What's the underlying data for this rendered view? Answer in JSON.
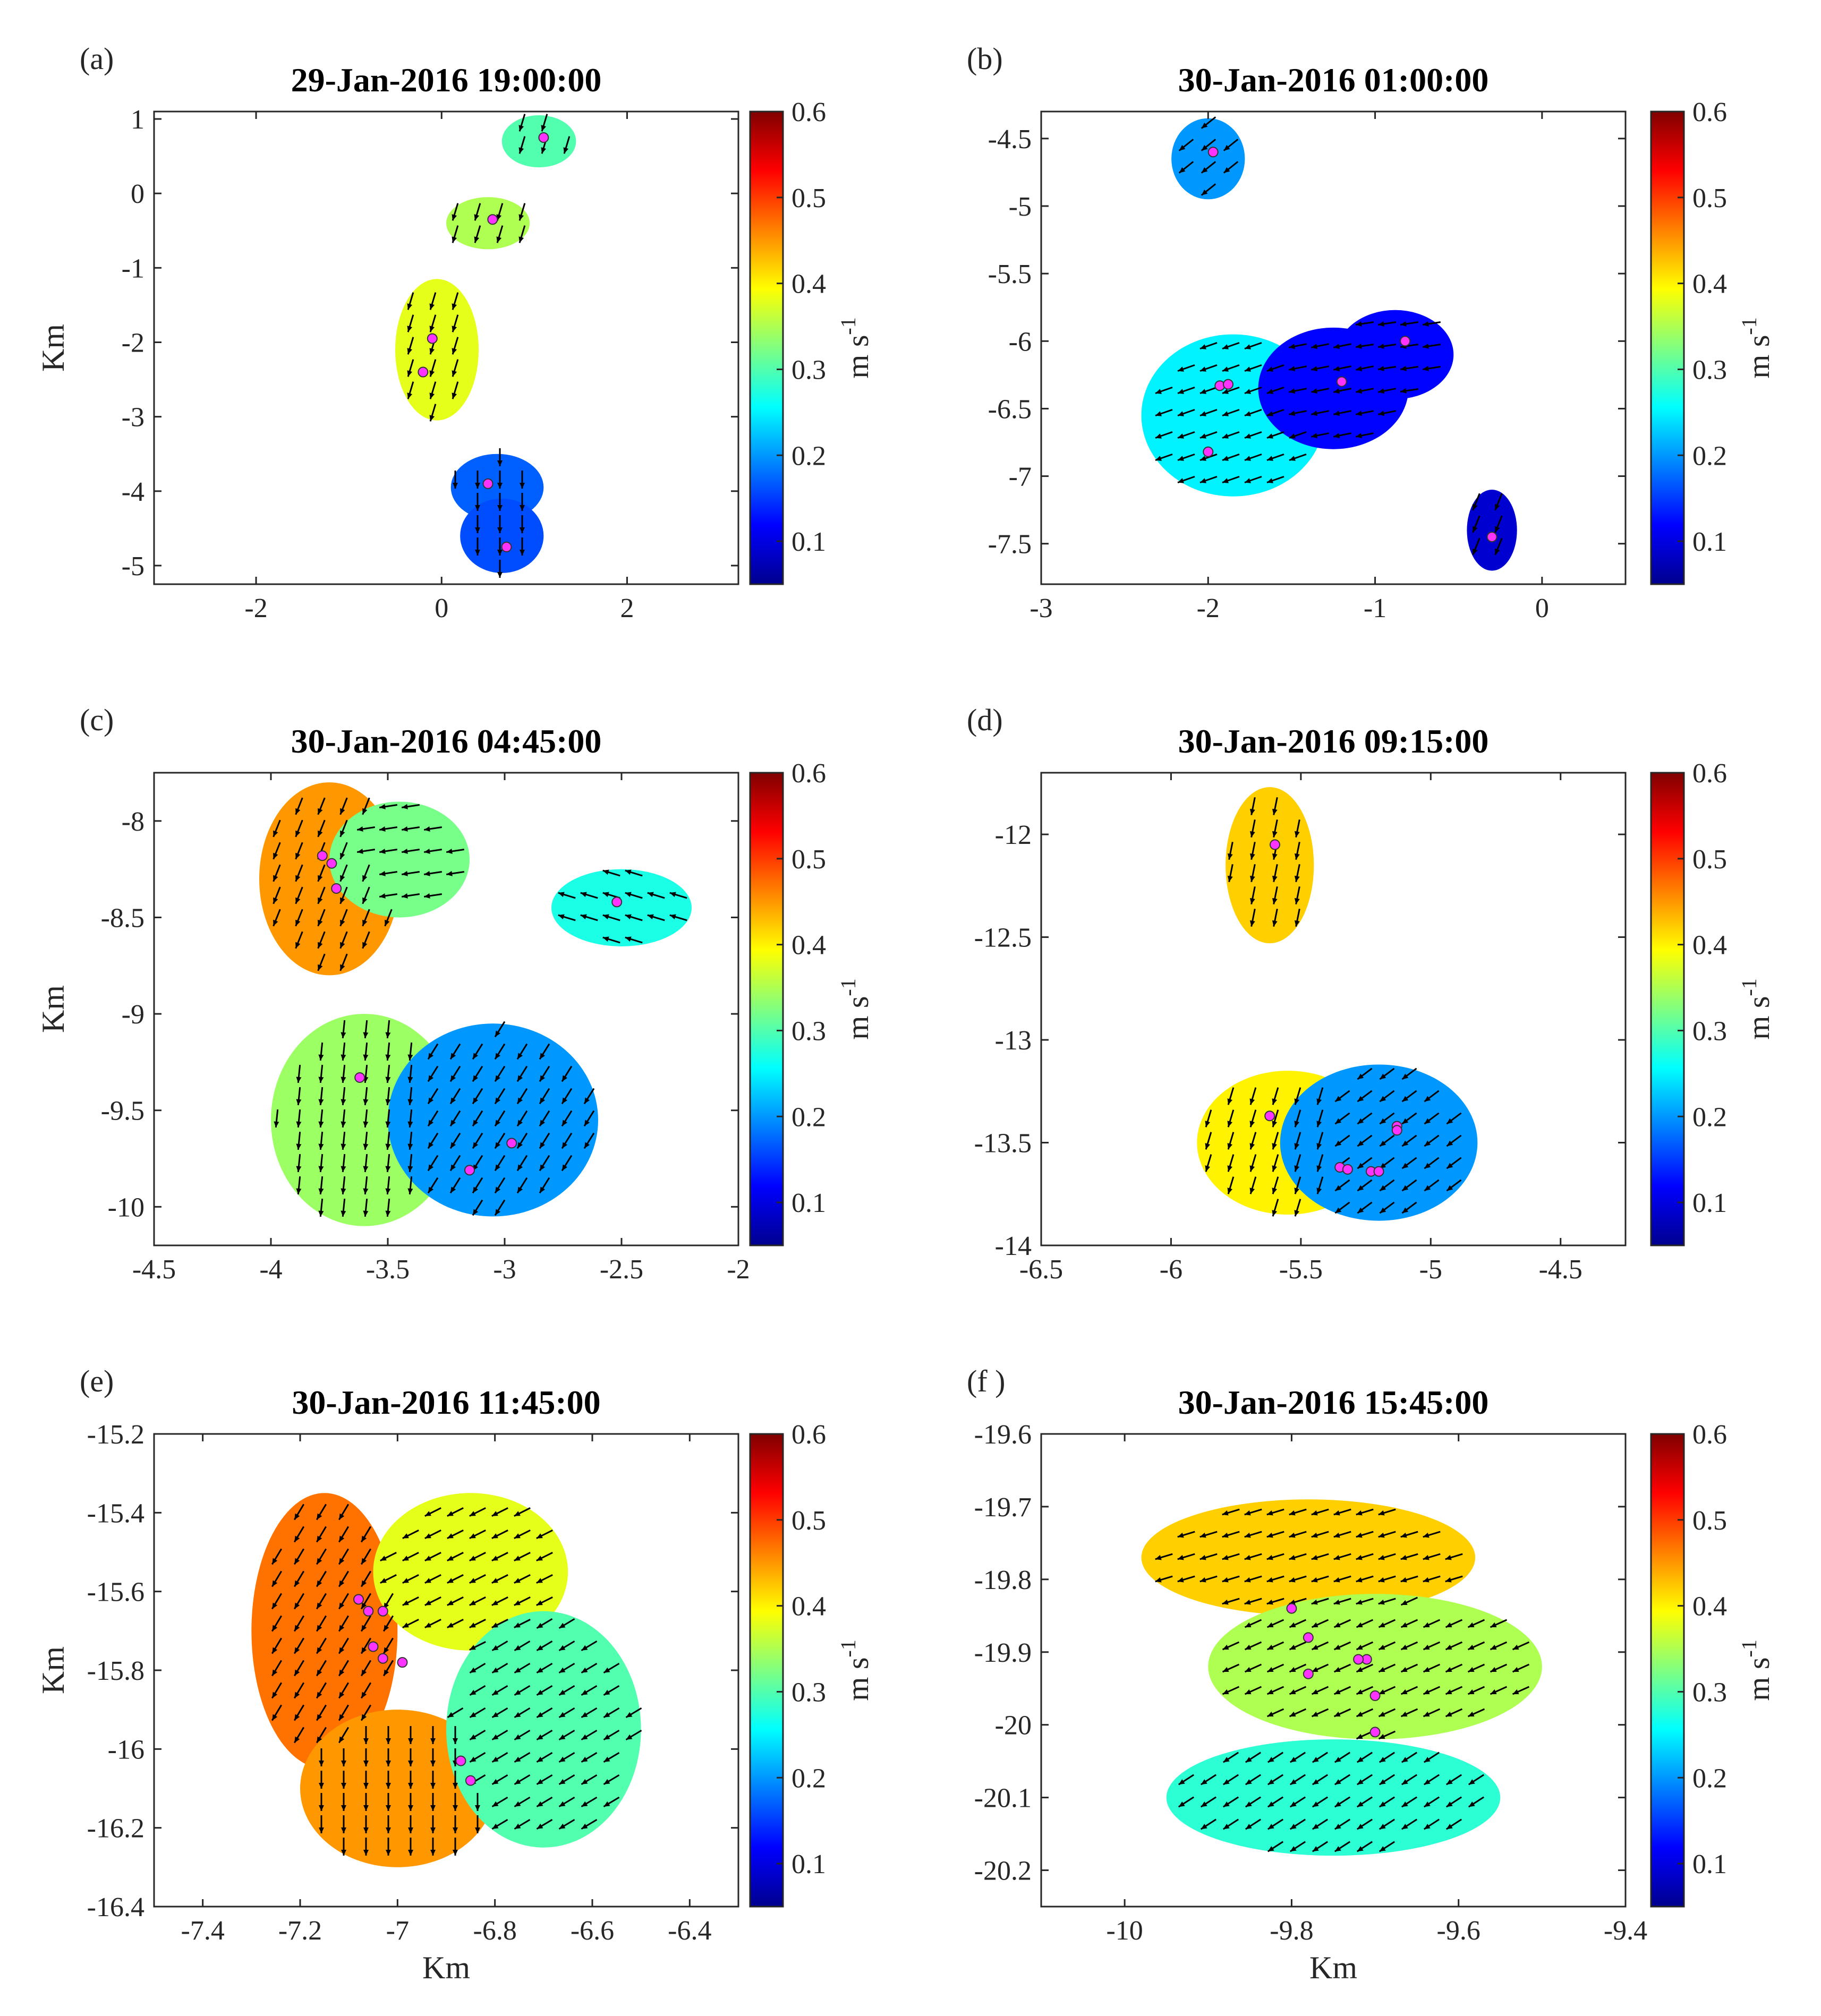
{
  "figure": {
    "colorbar_ticks": [
      "0.1",
      "0.2",
      "0.3",
      "0.4",
      "0.5",
      "0.6"
    ],
    "colorbar_label": "m s",
    "colorbar_label_superscript": "-1",
    "colormap": [
      "#00008f",
      "#0000ff",
      "#0080ff",
      "#00ffff",
      "#80ff80",
      "#ffff00",
      "#ff8000",
      "#ff0000",
      "#800000"
    ],
    "arrow_color": "#000000",
    "station_color": "#ff33ff",
    "panels": [
      {
        "label": "(a)",
        "title": "29-Jan-2016 19:00:00",
        "xticks": [
          "-2",
          "0",
          "2"
        ],
        "yticks": [
          "1",
          "0",
          "-1",
          "-2",
          "-3",
          "-4",
          "-5"
        ],
        "xlabel": "",
        "ylabel": "Km"
      },
      {
        "label": "(b)",
        "title": "30-Jan-2016 01:00:00",
        "xticks": [
          "-3",
          "-2",
          "-1",
          "0"
        ],
        "yticks": [
          "-4.5",
          "-5",
          "-5.5",
          "-6",
          "-6.5",
          "-7",
          "-7.5"
        ],
        "xlabel": "",
        "ylabel": ""
      },
      {
        "label": "(c)",
        "title": "30-Jan-2016 04:45:00",
        "xticks": [
          "-4.5",
          "-4",
          "-3.5",
          "-3",
          "-2.5",
          "-2"
        ],
        "yticks": [
          "-8",
          "-8.5",
          "-9",
          "-9.5",
          "-10"
        ],
        "xlabel": "",
        "ylabel": "Km"
      },
      {
        "label": "(d)",
        "title": "30-Jan-2016 09:15:00",
        "xticks": [
          "-6.5",
          "-6",
          "-5.5",
          "-5",
          "-4.5"
        ],
        "yticks": [
          "-12",
          "-12.5",
          "-13",
          "-13.5",
          "-14"
        ],
        "xlabel": "",
        "ylabel": ""
      },
      {
        "label": "(e)",
        "title": "30-Jan-2016 11:45:00",
        "xticks": [
          "-7.4",
          "-7.2",
          "-7",
          "-6.8",
          "-6.6",
          "-6.4"
        ],
        "yticks": [
          "-15.2",
          "-15.4",
          "-15.6",
          "-15.8",
          "-16",
          "-16.2",
          "-16.4"
        ],
        "xlabel": "Km",
        "ylabel": "Km"
      },
      {
        "label": "(f )",
        "title": "30-Jan-2016 15:45:00",
        "xticks": [
          "-10",
          "-9.8",
          "-9.6",
          "-9.4"
        ],
        "yticks": [
          "-19.6",
          "-19.7",
          "-19.8",
          "-19.9",
          "-20",
          "-20.1",
          "-20.2"
        ],
        "xlabel": "Km",
        "ylabel": ""
      }
    ]
  },
  "chart_data": [
    {
      "type": "heatmap",
      "title": "29-Jan-2016 19:00:00",
      "xlabel": "",
      "ylabel": "Km",
      "xlim": [
        -3.1,
        3.2
      ],
      "ylim": [
        -5.25,
        1.1
      ],
      "colorbar": {
        "label": "m s^-1",
        "range": [
          0.05,
          0.6
        ]
      },
      "stations": [
        [
          1.1,
          0.75
        ],
        [
          0.55,
          -0.35
        ],
        [
          -0.1,
          -1.95
        ],
        [
          -0.2,
          -2.4
        ],
        [
          0.5,
          -3.9
        ],
        [
          0.7,
          -4.75
        ]
      ],
      "regions": [
        {
          "center": [
            1.05,
            0.7
          ],
          "rx": 0.4,
          "ry": 0.35,
          "speed": 0.3,
          "flow": [
            -0.3,
            -1
          ]
        },
        {
          "center": [
            0.5,
            -0.4
          ],
          "rx": 0.45,
          "ry": 0.35,
          "speed": 0.35,
          "flow": [
            -0.3,
            -1
          ]
        },
        {
          "center": [
            -0.05,
            -2.1
          ],
          "rx": 0.45,
          "ry": 0.95,
          "speed": 0.38,
          "flow": [
            -0.3,
            -1
          ]
        },
        {
          "center": [
            0.6,
            -3.95
          ],
          "rx": 0.5,
          "ry": 0.45,
          "speed": 0.17,
          "flow": [
            0,
            -1
          ]
        },
        {
          "center": [
            0.65,
            -4.6
          ],
          "rx": 0.45,
          "ry": 0.5,
          "speed": 0.16,
          "flow": [
            0,
            -1
          ]
        }
      ]
    },
    {
      "type": "heatmap",
      "title": "30-Jan-2016 01:00:00",
      "xlabel": "",
      "ylabel": "",
      "xlim": [
        -3,
        0.5
      ],
      "ylim": [
        -7.8,
        -4.3
      ],
      "colorbar": {
        "label": "m s^-1",
        "range": [
          0.05,
          0.6
        ]
      },
      "stations": [
        [
          -1.97,
          -4.6
        ],
        [
          -1.93,
          -6.33
        ],
        [
          -1.88,
          -6.32
        ],
        [
          -2.0,
          -6.82
        ],
        [
          -1.2,
          -6.3
        ],
        [
          -0.82,
          -6.0
        ],
        [
          -0.3,
          -7.45
        ]
      ],
      "regions": [
        {
          "center": [
            -2.0,
            -4.65
          ],
          "rx": 0.22,
          "ry": 0.3,
          "speed": 0.2,
          "flow": [
            -1,
            -0.8
          ]
        },
        {
          "center": [
            -1.85,
            -6.55
          ],
          "rx": 0.55,
          "ry": 0.6,
          "speed": 0.25,
          "flow": [
            -1,
            -0.35
          ]
        },
        {
          "center": [
            -1.25,
            -6.35
          ],
          "rx": 0.45,
          "ry": 0.45,
          "speed": 0.12,
          "flow": [
            -1,
            -0.2
          ]
        },
        {
          "center": [
            -0.88,
            -6.1
          ],
          "rx": 0.35,
          "ry": 0.33,
          "speed": 0.12,
          "flow": [
            -1,
            -0.15
          ]
        },
        {
          "center": [
            -0.3,
            -7.4
          ],
          "rx": 0.15,
          "ry": 0.3,
          "speed": 0.09,
          "flow": [
            -0.4,
            -1
          ]
        }
      ]
    },
    {
      "type": "heatmap",
      "title": "30-Jan-2016 04:45:00",
      "xlabel": "",
      "ylabel": "Km",
      "xlim": [
        -4.5,
        -2.0
      ],
      "ylim": [
        -10.2,
        -7.75
      ],
      "colorbar": {
        "label": "m s^-1",
        "range": [
          0.05,
          0.6
        ]
      },
      "stations": [
        [
          -3.78,
          -8.18
        ],
        [
          -3.74,
          -8.22
        ],
        [
          -3.72,
          -8.35
        ],
        [
          -3.62,
          -9.33
        ],
        [
          -2.97,
          -9.67
        ],
        [
          -3.15,
          -9.81
        ],
        [
          -2.52,
          -8.42
        ]
      ],
      "regions": [
        {
          "center": [
            -3.75,
            -8.3
          ],
          "rx": 0.3,
          "ry": 0.5,
          "speed": 0.45,
          "flow": [
            -0.4,
            -1
          ]
        },
        {
          "center": [
            -3.45,
            -8.2
          ],
          "rx": 0.3,
          "ry": 0.3,
          "speed": 0.32,
          "flow": [
            -1,
            -0.15
          ]
        },
        {
          "center": [
            -3.6,
            -9.55
          ],
          "rx": 0.4,
          "ry": 0.55,
          "speed": 0.34,
          "flow": [
            -0.1,
            -1
          ]
        },
        {
          "center": [
            -3.05,
            -9.55
          ],
          "rx": 0.45,
          "ry": 0.5,
          "speed": 0.2,
          "flow": [
            -0.5,
            -0.8
          ]
        },
        {
          "center": [
            -2.5,
            -8.45
          ],
          "rx": 0.3,
          "ry": 0.2,
          "speed": 0.27,
          "flow": [
            -1,
            0.3
          ]
        }
      ]
    },
    {
      "type": "heatmap",
      "title": "30-Jan-2016 09:15:00",
      "xlabel": "",
      "ylabel": "",
      "xlim": [
        -6.5,
        -4.25
      ],
      "ylim": [
        -14.0,
        -11.7
      ],
      "colorbar": {
        "label": "m s^-1",
        "range": [
          0.05,
          0.6
        ]
      },
      "stations": [
        [
          -5.6,
          -12.05
        ],
        [
          -5.62,
          -13.37
        ],
        [
          -5.13,
          -13.42
        ],
        [
          -5.13,
          -13.44
        ],
        [
          -5.35,
          -13.62
        ],
        [
          -5.32,
          -13.63
        ],
        [
          -5.23,
          -13.64
        ],
        [
          -5.2,
          -13.64
        ]
      ],
      "regions": [
        {
          "center": [
            -5.62,
            -12.15
          ],
          "rx": 0.17,
          "ry": 0.38,
          "speed": 0.42,
          "flow": [
            -0.2,
            -1
          ]
        },
        {
          "center": [
            -5.55,
            -13.5
          ],
          "rx": 0.35,
          "ry": 0.35,
          "speed": 0.4,
          "flow": [
            -0.3,
            -1
          ]
        },
        {
          "center": [
            -5.2,
            -13.5
          ],
          "rx": 0.38,
          "ry": 0.38,
          "speed": 0.2,
          "flow": [
            -0.8,
            -0.6
          ]
        }
      ]
    },
    {
      "type": "heatmap",
      "title": "30-Jan-2016 11:45:00",
      "xlabel": "Km",
      "ylabel": "Km",
      "xlim": [
        -7.5,
        -6.3
      ],
      "ylim": [
        -16.4,
        -15.2
      ],
      "colorbar": {
        "label": "m s^-1",
        "range": [
          0.05,
          0.6
        ]
      },
      "stations": [
        [
          -7.08,
          -15.62
        ],
        [
          -7.06,
          -15.65
        ],
        [
          -7.03,
          -15.65
        ],
        [
          -7.05,
          -15.74
        ],
        [
          -7.03,
          -15.77
        ],
        [
          -6.99,
          -15.78
        ],
        [
          -6.87,
          -16.03
        ],
        [
          -6.85,
          -16.08
        ]
      ],
      "regions": [
        {
          "center": [
            -7.15,
            -15.7
          ],
          "rx": 0.15,
          "ry": 0.35,
          "speed": 0.47,
          "flow": [
            -0.6,
            -1
          ]
        },
        {
          "center": [
            -7.0,
            -16.1
          ],
          "rx": 0.2,
          "ry": 0.2,
          "speed": 0.45,
          "flow": [
            0,
            -1
          ]
        },
        {
          "center": [
            -6.85,
            -15.55
          ],
          "rx": 0.2,
          "ry": 0.2,
          "speed": 0.38,
          "flow": [
            -1,
            -0.5
          ]
        },
        {
          "center": [
            -6.7,
            -15.95
          ],
          "rx": 0.2,
          "ry": 0.3,
          "speed": 0.3,
          "flow": [
            -1,
            -0.6
          ]
        }
      ]
    },
    {
      "type": "heatmap",
      "title": "30-Jan-2016 15:45:00",
      "xlabel": "Km",
      "ylabel": "",
      "xlim": [
        -10.1,
        -9.4
      ],
      "ylim": [
        -20.25,
        -19.6
      ],
      "colorbar": {
        "label": "m s^-1",
        "range": [
          0.05,
          0.6
        ]
      },
      "stations": [
        [
          -9.8,
          -19.84
        ],
        [
          -9.78,
          -19.88
        ],
        [
          -9.71,
          -19.91
        ],
        [
          -9.72,
          -19.91
        ],
        [
          -9.78,
          -19.93
        ],
        [
          -9.7,
          -19.96
        ],
        [
          -9.7,
          -20.01
        ]
      ],
      "regions": [
        {
          "center": [
            -9.78,
            -19.77
          ],
          "rx": 0.2,
          "ry": 0.08,
          "speed": 0.42,
          "flow": [
            -1,
            -0.3
          ]
        },
        {
          "center": [
            -9.7,
            -19.92
          ],
          "rx": 0.2,
          "ry": 0.1,
          "speed": 0.35,
          "flow": [
            -1,
            -0.45
          ]
        },
        {
          "center": [
            -9.75,
            -20.1
          ],
          "rx": 0.2,
          "ry": 0.08,
          "speed": 0.28,
          "flow": [
            -1,
            -0.65
          ]
        }
      ]
    }
  ]
}
